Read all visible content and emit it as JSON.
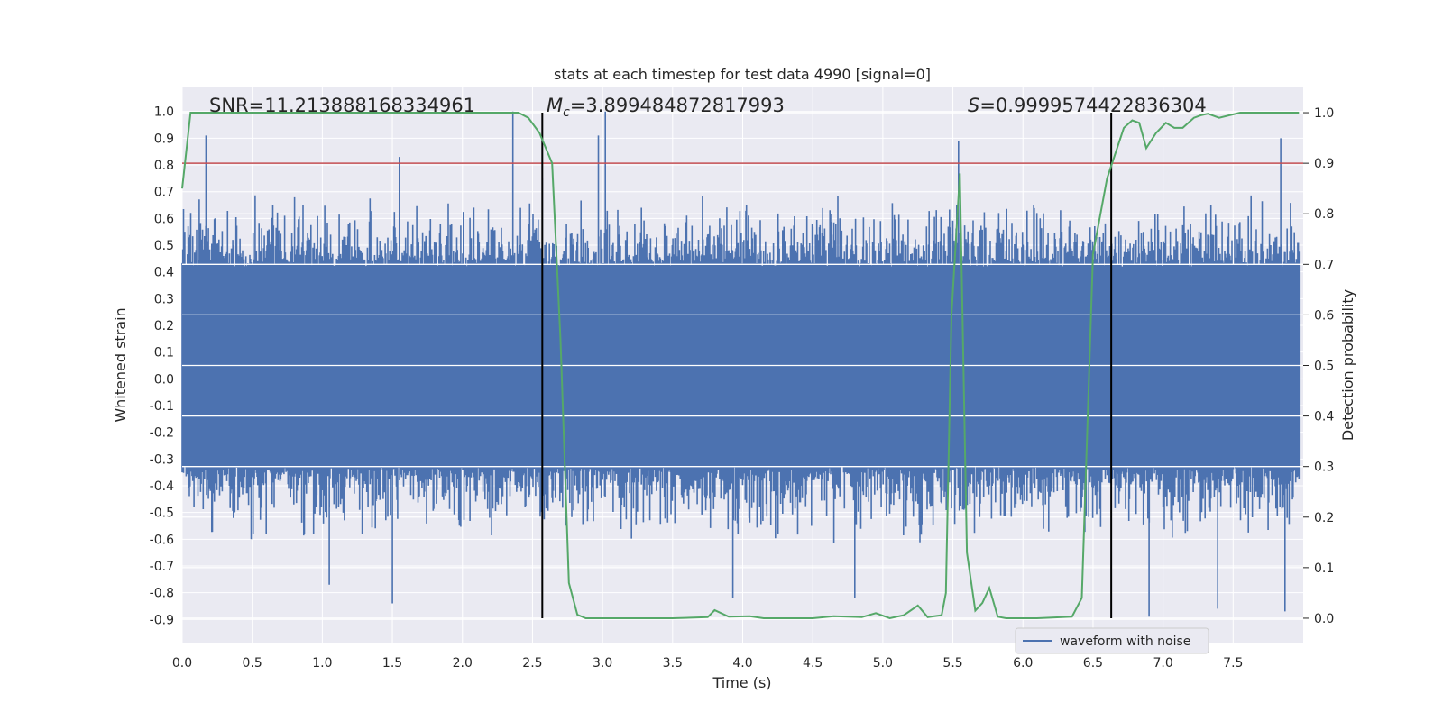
{
  "chart_data": {
    "type": "line",
    "title": "stats at each timestep for test data 4990 [signal=0]",
    "xlabel": "Time (s)",
    "ylabel": "Whitened strain",
    "y2label": "Detection probability",
    "xlim": [
      0.0,
      8.0
    ],
    "ylim": [
      -0.99,
      1.09
    ],
    "y2lim": [
      -0.05,
      1.05
    ],
    "grid": true,
    "x_ticks": [
      "0.0",
      "0.5",
      "1.0",
      "1.5",
      "2.0",
      "2.5",
      "3.0",
      "3.5",
      "4.0",
      "4.5",
      "5.0",
      "5.5",
      "6.0",
      "6.5",
      "7.0",
      "7.5"
    ],
    "y_ticks": [
      "1.0",
      "0.9",
      "0.8",
      "0.7",
      "0.6",
      "0.5",
      "0.4",
      "0.3",
      "0.2",
      "0.1",
      "0.0",
      "-0.1",
      "-0.2",
      "-0.3",
      "-0.4",
      "-0.5",
      "-0.6",
      "-0.7",
      "-0.8",
      "-0.9"
    ],
    "y2_ticks": [
      "1.0",
      "0.9",
      "0.8",
      "0.7",
      "0.6",
      "0.5",
      "0.4",
      "0.3",
      "0.2",
      "0.1",
      "0.0"
    ],
    "annotations": {
      "snr": "SNR=11.213888168334961",
      "mc_symbol": "M",
      "mc_sub": "c",
      "mc_value": "=3.899484872817993",
      "s_symbol": "S",
      "s_value": "=0.9999574422836304"
    },
    "threshold": {
      "y2": 0.9,
      "color": "#c44e52"
    },
    "vertical_markers": [
      2.57,
      6.63
    ],
    "waveform": {
      "name": "waveform with noise",
      "color": "#4c72b0",
      "core_envelope": [
        -0.33,
        0.42
      ],
      "peak_spikes": [
        {
          "t": 0.17,
          "v": 0.91
        },
        {
          "t": 1.55,
          "v": 0.83
        },
        {
          "t": 2.36,
          "v": 1.0
        },
        {
          "t": 2.57,
          "v": 0.75
        },
        {
          "t": 2.97,
          "v": 0.91
        },
        {
          "t": 3.02,
          "v": 1.0
        },
        {
          "t": 5.54,
          "v": 0.89
        },
        {
          "t": 7.84,
          "v": 0.9
        }
      ],
      "trough_spikes": [
        {
          "t": 1.5,
          "v": -0.84
        },
        {
          "t": 1.05,
          "v": -0.77
        },
        {
          "t": 3.93,
          "v": -0.82
        },
        {
          "t": 4.8,
          "v": -0.82
        },
        {
          "t": 6.9,
          "v": -0.89
        },
        {
          "t": 7.39,
          "v": -0.86
        },
        {
          "t": 7.87,
          "v": -0.87
        }
      ]
    },
    "probability_series": {
      "name": "detection probability",
      "color": "#55a868",
      "x": [
        0.0,
        0.06,
        0.5,
        1.0,
        2.0,
        2.4,
        2.47,
        2.55,
        2.64,
        2.7,
        2.76,
        2.82,
        2.88,
        3.0,
        3.5,
        3.75,
        3.8,
        3.9,
        4.05,
        4.15,
        4.5,
        4.65,
        4.85,
        4.95,
        5.05,
        5.15,
        5.25,
        5.32,
        5.42,
        5.45,
        5.49,
        5.55,
        5.6,
        5.66,
        5.71,
        5.76,
        5.82,
        5.88,
        5.95,
        6.1,
        6.35,
        6.42,
        6.5,
        6.6,
        6.72,
        6.78,
        6.83,
        6.88,
        6.95,
        7.02,
        7.08,
        7.14,
        7.22,
        7.27,
        7.32,
        7.4,
        7.55,
        7.7,
        7.97
      ],
      "y": [
        0.85,
        1.0,
        1.0,
        1.0,
        1.0,
        1.0,
        0.99,
        0.96,
        0.9,
        0.55,
        0.07,
        0.007,
        0.0,
        0.0,
        0.0,
        0.002,
        0.016,
        0.003,
        0.004,
        0.0,
        0.0,
        0.004,
        0.002,
        0.01,
        0.0,
        0.006,
        0.025,
        0.002,
        0.006,
        0.05,
        0.6,
        0.88,
        0.13,
        0.015,
        0.03,
        0.06,
        0.003,
        0.0,
        0.0,
        0.0,
        0.003,
        0.04,
        0.72,
        0.87,
        0.97,
        0.985,
        0.98,
        0.93,
        0.96,
        0.98,
        0.97,
        0.97,
        0.99,
        0.995,
        0.998,
        0.99,
        1.0,
        1.0,
        1.0
      ]
    },
    "legend": {
      "placement": "lower-right",
      "entries": [
        "waveform with noise"
      ]
    }
  }
}
